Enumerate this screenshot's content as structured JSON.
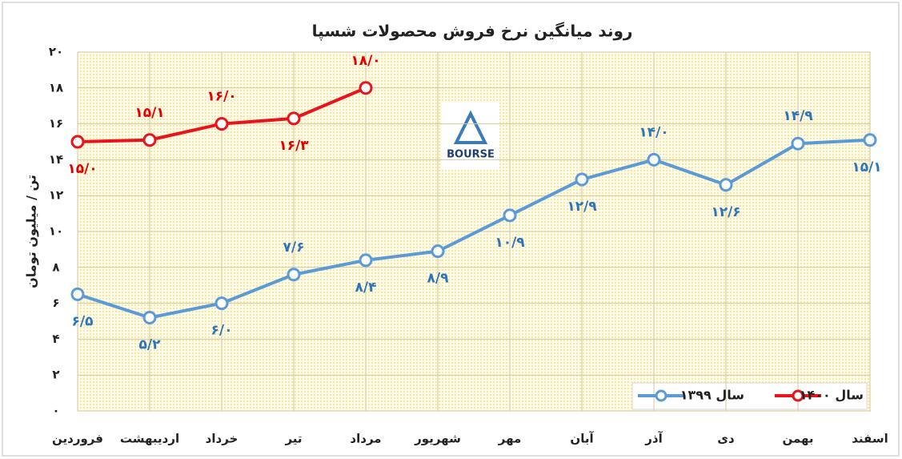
{
  "chart_data": {
    "type": "line",
    "title": "روند میانگین نرخ فروش محصولات شسپا",
    "y_label": "تن / میلیون تومان",
    "watermark": "BOURSE",
    "categories": [
      "فروردین",
      "اردیبهشت",
      "خرداد",
      "تیر",
      "مرداد",
      "شهریور",
      "مهر",
      "آبان",
      "آذر",
      "دی",
      "بهمن",
      "اسفند"
    ],
    "series": [
      {
        "name": "سال ۱۳۹۹",
        "color": "#5b9bd5",
        "label_color": "#2e75b6",
        "values": [
          6.5,
          5.2,
          6.0,
          7.6,
          8.4,
          8.9,
          10.9,
          12.9,
          14.0,
          12.6,
          14.9,
          15.1
        ],
        "value_labels": [
          "۶/۵",
          "۵/۲",
          "۶/۰",
          "۷/۶",
          "۸/۴",
          "۸/۹",
          "۱۰/۹",
          "۱۲/۹",
          "۱۴/۰",
          "۱۲/۶",
          "۱۴/۹",
          "۱۵/۱"
        ]
      },
      {
        "name": "سال ۱۴۰۰",
        "color": "#e8141b",
        "label_color": "#e00000",
        "values": [
          15.0,
          15.1,
          16.0,
          16.3,
          18.0,
          null,
          null,
          null,
          null,
          null,
          null,
          null
        ],
        "value_labels": [
          "۱۵/۰",
          "۱۵/۱",
          "۱۶/۰",
          "۱۶/۳",
          "۱۸/۰",
          null,
          null,
          null,
          null,
          null,
          null,
          null
        ]
      }
    ],
    "ylim": [
      0,
      20
    ],
    "yticks": [
      {
        "value": 0,
        "label": "۰"
      },
      {
        "value": 2,
        "label": "۲"
      },
      {
        "value": 4,
        "label": "۴"
      },
      {
        "value": 6,
        "label": "۶"
      },
      {
        "value": 8,
        "label": "۸"
      },
      {
        "value": 10,
        "label": "۱۰"
      },
      {
        "value": 12,
        "label": "۱۲"
      },
      {
        "value": 14,
        "label": "۱۴"
      },
      {
        "value": 16,
        "label": "۱۶"
      },
      {
        "value": 18,
        "label": "۱۸"
      },
      {
        "value": 20,
        "label": "۲۰"
      }
    ],
    "grid": true,
    "legend": "lower right"
  }
}
